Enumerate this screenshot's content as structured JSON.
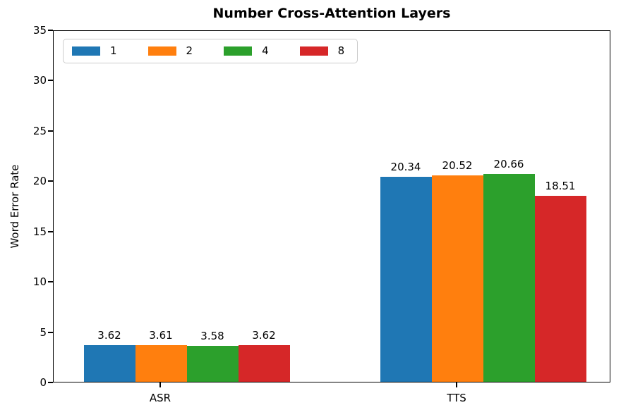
{
  "figure": {
    "title": "Number Cross-Attention Layers",
    "ylabel": "Word Error Rate"
  },
  "legend": {
    "items": [
      {
        "label": "1",
        "color": "#1f77b4"
      },
      {
        "label": "2",
        "color": "#ff7f0e"
      },
      {
        "label": "4",
        "color": "#2ca02c"
      },
      {
        "label": "8",
        "color": "#d62728"
      }
    ]
  },
  "chart_data": {
    "type": "bar",
    "title": "Number Cross-Attention Layers",
    "xlabel": "",
    "ylabel": "Word Error Rate",
    "categories": [
      "ASR",
      "TTS"
    ],
    "series": [
      {
        "name": "1",
        "color": "#1f77b4",
        "values": [
          3.62,
          20.34
        ]
      },
      {
        "name": "2",
        "color": "#ff7f0e",
        "values": [
          3.61,
          20.52
        ]
      },
      {
        "name": "4",
        "color": "#2ca02c",
        "values": [
          3.58,
          20.66
        ]
      },
      {
        "name": "8",
        "color": "#d62728",
        "values": [
          3.62,
          18.51
        ]
      }
    ],
    "bar_labels": [
      [
        "3.62",
        "20.34"
      ],
      [
        "3.61",
        "20.52"
      ],
      [
        "3.58",
        "20.66"
      ],
      [
        "3.62",
        "18.51"
      ]
    ],
    "yticks": [
      "0",
      "5",
      "10",
      "15",
      "20",
      "25",
      "30",
      "35"
    ],
    "ylim": [
      0,
      35
    ],
    "grid": false,
    "legend_title": null,
    "legend_position": "upper left"
  }
}
